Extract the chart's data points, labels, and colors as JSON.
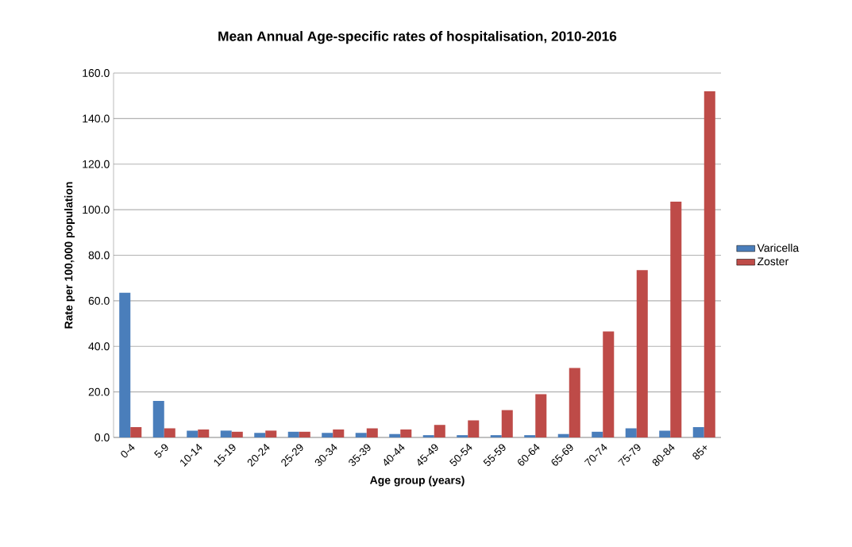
{
  "chart_data": {
    "type": "bar",
    "title": "Mean Annual Age-specific rates of hospitalisation, 2010-2016",
    "xlabel": "Age group (years)",
    "ylabel": "Rate per 100,000 population",
    "categories": [
      "0-4",
      "5-9",
      "10-14",
      "15-19",
      "20-24",
      "25-29",
      "30-34",
      "35-39",
      "40-44",
      "45-49",
      "50-54",
      "55-59",
      "60-64",
      "65-69",
      "70-74",
      "75-79",
      "80-84",
      "85+"
    ],
    "series": [
      {
        "name": "Varicella",
        "color": "#4a7ebb",
        "values": [
          63.5,
          16,
          3,
          3,
          2,
          2.5,
          2,
          2,
          1.5,
          1,
          1,
          1,
          1,
          1.5,
          2.5,
          4,
          3,
          4.5
        ]
      },
      {
        "name": "Zoster",
        "color": "#be4b48",
        "values": [
          4.5,
          4,
          3.5,
          2.5,
          3,
          2.5,
          3.5,
          4,
          3.5,
          5.5,
          7.5,
          12,
          19,
          30.5,
          46.5,
          73.5,
          103.5,
          152
        ]
      }
    ],
    "ylim": [
      0,
      160
    ],
    "yticks": [
      {
        "value": 0,
        "label": "0.0"
      },
      {
        "value": 20,
        "label": "20.0"
      },
      {
        "value": 40,
        "label": "40.0"
      },
      {
        "value": 60,
        "label": "60.0"
      },
      {
        "value": 80,
        "label": "80.0"
      },
      {
        "value": 100,
        "label": "100.0"
      },
      {
        "value": 120,
        "label": "120.0"
      },
      {
        "value": 140,
        "label": "140.0"
      },
      {
        "value": 160,
        "label": "160.0"
      }
    ],
    "grid": "y",
    "legend": "right"
  }
}
